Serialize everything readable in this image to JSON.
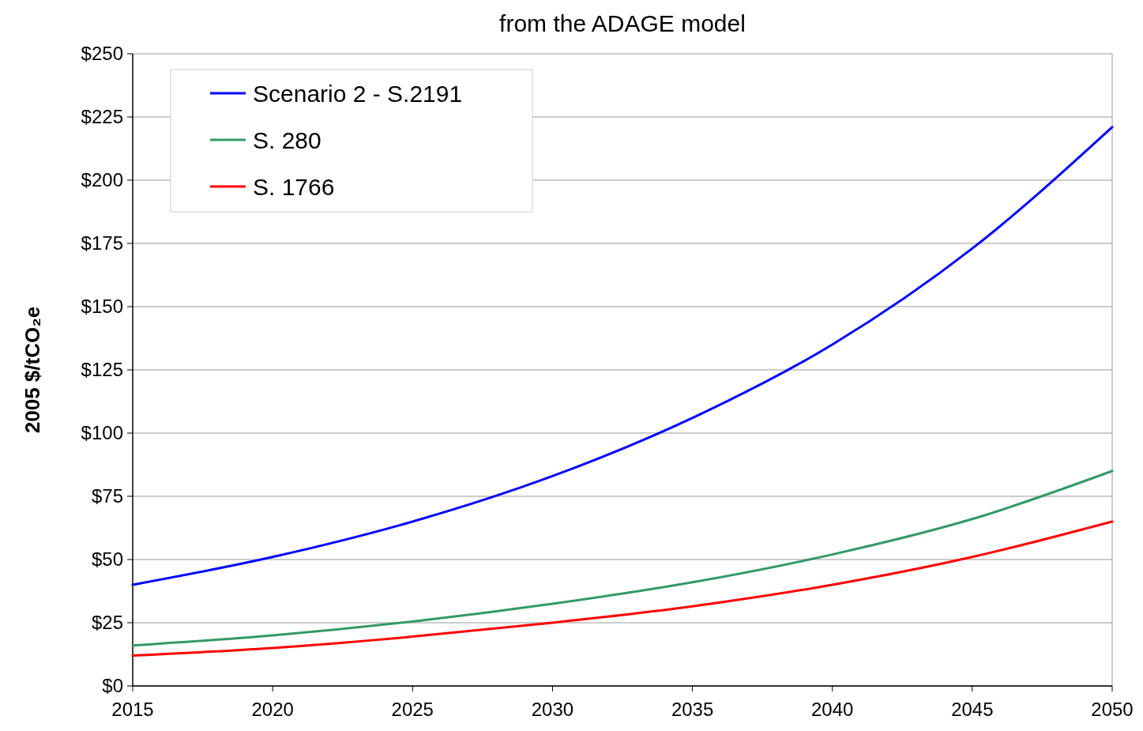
{
  "chart_data": {
    "type": "line",
    "title": "from the ADAGE model",
    "ylabel": "2005 $/tCO₂e",
    "x": [
      2015,
      2020,
      2025,
      2030,
      2035,
      2040,
      2045,
      2050
    ],
    "series": [
      {
        "name": "Scenario 2 - S.2191",
        "color": "#0000ff",
        "values": [
          40,
          51,
          65,
          83,
          106,
          135,
          173,
          221
        ]
      },
      {
        "name": "S. 280",
        "color": "#339966",
        "values": [
          16,
          20,
          25.5,
          32.5,
          41,
          52,
          66,
          85
        ]
      },
      {
        "name": "S. 1766",
        "color": "#ff0000",
        "values": [
          12,
          15,
          19.5,
          25,
          31.5,
          40,
          51,
          65
        ]
      }
    ],
    "xlim": [
      2015,
      2050
    ],
    "xticks": [
      2015,
      2020,
      2025,
      2030,
      2035,
      2040,
      2045,
      2050
    ],
    "ylim": [
      0,
      250
    ],
    "yticks": [
      {
        "value": 0,
        "label": "$0"
      },
      {
        "value": 25,
        "label": "$25"
      },
      {
        "value": 50,
        "label": "$50"
      },
      {
        "value": 75,
        "label": "$75"
      },
      {
        "value": 100,
        "label": "$100"
      },
      {
        "value": 125,
        "label": "$125"
      },
      {
        "value": 150,
        "label": "$150"
      },
      {
        "value": 175,
        "label": "$175"
      },
      {
        "value": 200,
        "label": "$200"
      },
      {
        "value": 225,
        "label": "$225"
      },
      {
        "value": 250,
        "label": "$250"
      }
    ],
    "grid": "y",
    "legend": "top left",
    "marker": "none",
    "line_style": "solid"
  }
}
